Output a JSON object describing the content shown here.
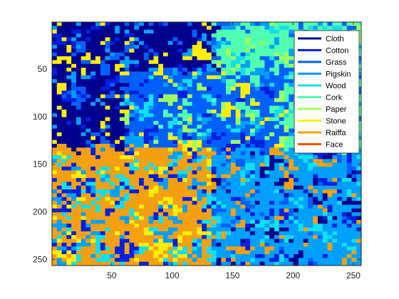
{
  "chart_data": {
    "type": "heatmap",
    "title": "",
    "xlabel": "",
    "ylabel": "",
    "xlim": [
      0.5,
      256.5
    ],
    "ylim": [
      0.5,
      256.5
    ],
    "y_direction": "reverse",
    "xticks": [
      50,
      100,
      150,
      200,
      250
    ],
    "yticks": [
      50,
      100,
      150,
      200,
      250
    ],
    "xtick_labels": [
      "50",
      "100",
      "150",
      "200",
      "250"
    ],
    "ytick_labels": [
      "50",
      "100",
      "150",
      "200",
      "250"
    ],
    "grid": false,
    "colormap": "jet",
    "legend_position": "top-right",
    "classes": [
      {
        "name": "Cloth",
        "color": "#00008F"
      },
      {
        "name": "Cotton",
        "color": "#0020E0"
      },
      {
        "name": "Grass",
        "color": "#0060FF"
      },
      {
        "name": "Pigskin",
        "color": "#00A0FF"
      },
      {
        "name": "Wood",
        "color": "#10E0F0"
      },
      {
        "name": "Cork",
        "color": "#50FFAF"
      },
      {
        "name": "Paper",
        "color": "#A0FF5F"
      },
      {
        "name": "Stone",
        "color": "#FFEF00"
      },
      {
        "name": "Raiffa",
        "color": "#F5A010"
      },
      {
        "name": "Face",
        "color": "#FF5000"
      }
    ],
    "regions": [
      {
        "rows": [
          1,
          130
        ],
        "cols": [
          1,
          130
        ],
        "class": "Cloth"
      },
      {
        "rows": [
          1,
          130
        ],
        "cols": [
          131,
          256
        ],
        "class": "Cork"
      },
      {
        "rows": [
          51,
          150
        ],
        "cols": [
          60,
          190
        ],
        "class": "Grass"
      },
      {
        "rows": [
          131,
          256
        ],
        "cols": [
          1,
          130
        ],
        "class": "Raiffa"
      },
      {
        "rows": [
          131,
          256
        ],
        "cols": [
          131,
          256
        ],
        "class": "Pigskin"
      }
    ]
  }
}
